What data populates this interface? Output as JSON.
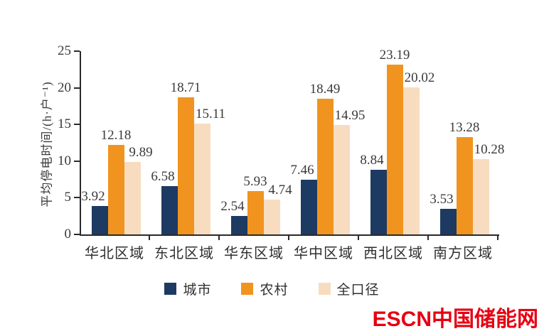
{
  "chart_data": {
    "type": "bar",
    "title": "",
    "ylabel": "平均停电时间/(h·户⁻¹)",
    "xlabel": "",
    "categories": [
      "华北区域",
      "东北区域",
      "华东区域",
      "华中区域",
      "西北区域",
      "南方区域"
    ],
    "series": [
      {
        "name": "城市",
        "color": "#1d3a63",
        "values": [
          3.92,
          6.58,
          2.54,
          7.46,
          8.84,
          3.53
        ]
      },
      {
        "name": "农村",
        "color": "#f0941f",
        "values": [
          12.18,
          18.71,
          5.93,
          18.49,
          23.19,
          13.28
        ]
      },
      {
        "name": "全口径",
        "color": "#f8dcc0",
        "values": [
          9.89,
          15.11,
          4.74,
          14.95,
          20.02,
          10.28
        ]
      }
    ],
    "ylim": [
      0,
      25
    ],
    "yticks": [
      0,
      5,
      10,
      15,
      20,
      25
    ],
    "grid": false,
    "legend_position": "bottom"
  },
  "watermark": {
    "text": "ESCN中国储能网",
    "color": "#e60012"
  },
  "colors": {
    "axis": "#2a2a2a",
    "label_text": "#3a3a3a",
    "background": "#ffffff"
  }
}
